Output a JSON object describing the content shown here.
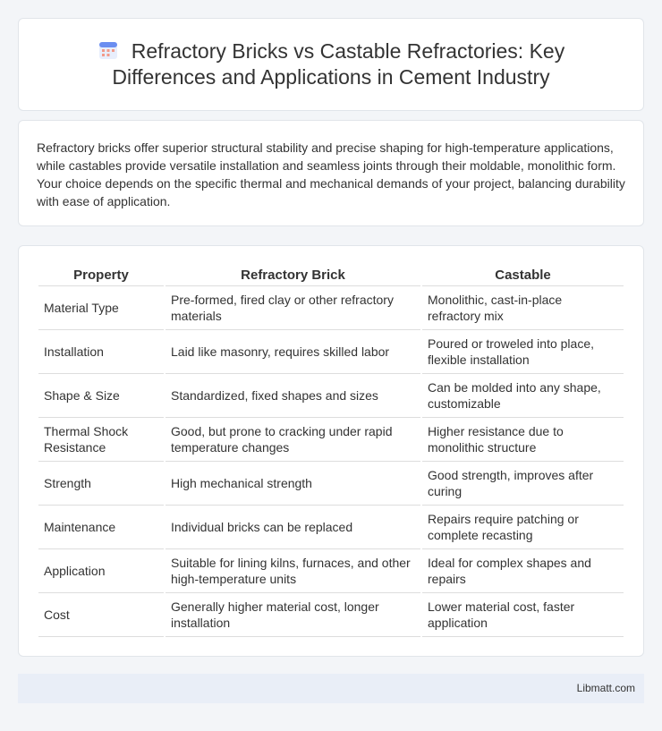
{
  "header": {
    "title": "Refractory Bricks vs Castable Refractories: Key Differences and Applications in Cement Industry"
  },
  "intro": "Refractory bricks offer superior structural stability and precise shaping for high-temperature applications, while castables provide versatile installation and seamless joints through their moldable, monolithic form. Your choice depends on the specific thermal and mechanical demands of your project, balancing durability with ease of application.",
  "table": {
    "columns": [
      "Property",
      "Refractory Brick",
      "Castable"
    ],
    "rows": [
      [
        "Material Type",
        "Pre-formed, fired clay or other refractory materials",
        "Monolithic, cast-in-place refractory mix"
      ],
      [
        "Installation",
        "Laid like masonry, requires skilled labor",
        "Poured or troweled into place, flexible installation"
      ],
      [
        "Shape & Size",
        "Standardized, fixed shapes and sizes",
        "Can be molded into any shape, customizable"
      ],
      [
        "Thermal Shock Resistance",
        "Good, but prone to cracking under rapid temperature changes",
        "Higher resistance due to monolithic structure"
      ],
      [
        "Strength",
        "High mechanical strength",
        "Good strength, improves after curing"
      ],
      [
        "Maintenance",
        "Individual bricks can be replaced",
        "Repairs require patching or complete recasting"
      ],
      [
        "Application",
        "Suitable for lining kilns, furnaces, and other high-temperature units",
        "Ideal for complex shapes and repairs"
      ],
      [
        "Cost",
        "Generally higher material cost, longer installation",
        "Lower material cost, faster application"
      ]
    ]
  },
  "footer": "Libmatt.com"
}
